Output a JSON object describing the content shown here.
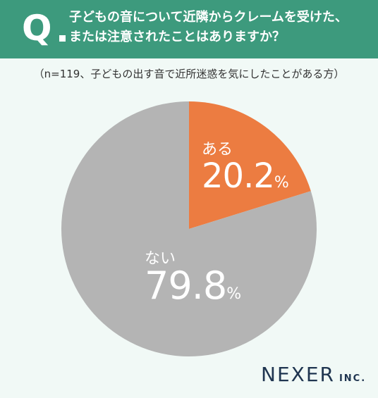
{
  "header": {
    "q_mark": "Q",
    "question_line1": "子どもの音について近隣からクレームを受けた、",
    "question_line2": "または注意されたことはありますか？"
  },
  "subtitle": "（n=119、子どもの出す音で近所迷惑を気にしたことがある方）",
  "chart_data": {
    "type": "pie",
    "categories": [
      "ある",
      "ない"
    ],
    "values": [
      20.2,
      79.8
    ],
    "labels": [
      {
        "name": "ある",
        "value": "20.2",
        "unit": "%"
      },
      {
        "name": "ない",
        "value": "79.8",
        "unit": "%"
      }
    ],
    "colors": [
      "#ec7c41",
      "#b4b4b4"
    ]
  },
  "logo": {
    "main": "NEXER",
    "sub": "INC."
  }
}
